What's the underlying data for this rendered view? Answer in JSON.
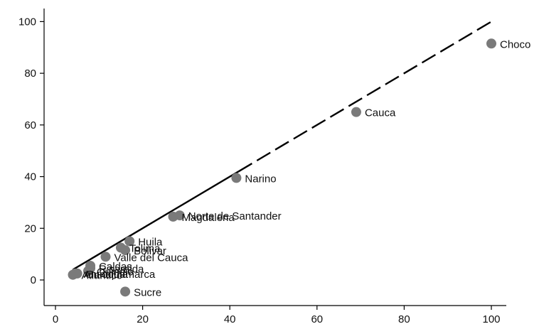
{
  "chart_data": {
    "type": "scatter",
    "title": "",
    "xlabel": "",
    "ylabel": "",
    "xlim": [
      -5,
      104
    ],
    "ylim": [
      -10,
      104
    ],
    "x_ticks": [
      0,
      20,
      40,
      60,
      80,
      100
    ],
    "y_ticks": [
      0,
      20,
      40,
      60,
      80,
      100
    ],
    "x_tick_labels": [
      "0",
      "20",
      "40",
      "60",
      "80",
      "100"
    ],
    "y_tick_labels": [
      "0",
      "20",
      "40",
      "60",
      "80",
      "100"
    ],
    "grid": false,
    "legend": "none",
    "point_color": "#7a7a7a",
    "line_color": "#000000",
    "points": [
      {
        "label": "Choco",
        "x": 100,
        "y": 91.5
      },
      {
        "label": "Cauca",
        "x": 69,
        "y": 65
      },
      {
        "label": "Narino",
        "x": 41.5,
        "y": 39.5
      },
      {
        "label": "Norte de Santander",
        "x": 28.5,
        "y": 25
      },
      {
        "label": "Magdalena",
        "x": 27,
        "y": 24.5
      },
      {
        "label": "Huila",
        "x": 17,
        "y": 15
      },
      {
        "label": "Tolima",
        "x": 15,
        "y": 12.5
      },
      {
        "label": "Bolivar",
        "x": 16,
        "y": 11.5
      },
      {
        "label": "Valle del Cauca",
        "x": 11.5,
        "y": 9
      },
      {
        "label": "Caldas",
        "x": 8,
        "y": 5.5
      },
      {
        "label": "Risaralda",
        "x": 8,
        "y": 4.5
      },
      {
        "label": "Quindio",
        "x": 7.5,
        "y": 3.5
      },
      {
        "label": "Cundinamarca",
        "x": 5,
        "y": 2.5
      },
      {
        "label": "Atlantico",
        "x": 4,
        "y": 2
      },
      {
        "label": "Antioquia",
        "x": 4.5,
        "y": 2.5
      },
      {
        "label": "Sucre",
        "x": 16,
        "y": -4.5
      }
    ],
    "reference_line": {
      "x": [
        4,
        100
      ],
      "y": [
        4,
        100
      ],
      "solid_until_x": 42
    }
  }
}
